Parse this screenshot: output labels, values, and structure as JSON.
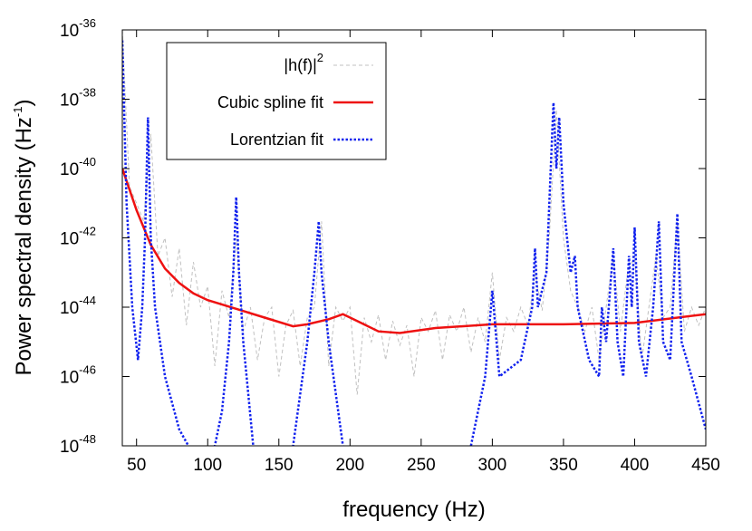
{
  "chart_data": {
    "type": "line",
    "log_y": true,
    "xlabel": "frequency (Hz)",
    "ylabel": {
      "text": "Power spectral density (Hz",
      "exponent": "-1",
      "suffix": ")"
    },
    "xlim": [
      40,
      450
    ],
    "xticks": [
      50,
      100,
      150,
      200,
      250,
      300,
      350,
      400,
      450
    ],
    "ylim": [
      1e-48,
      1e-36
    ],
    "yticks": [
      {
        "value": 1e-48,
        "base": "10",
        "exponent": "-48"
      },
      {
        "value": 1e-46,
        "base": "10",
        "exponent": "-46"
      },
      {
        "value": 1e-44,
        "base": "10",
        "exponent": "-44"
      },
      {
        "value": 1e-42,
        "base": "10",
        "exponent": "-42"
      },
      {
        "value": 1e-40,
        "base": "10",
        "exponent": "-40"
      },
      {
        "value": 1e-38,
        "base": "10",
        "exponent": "-38"
      },
      {
        "value": 1e-36,
        "base": "10",
        "exponent": "-36"
      }
    ],
    "legend": "top-left",
    "series": [
      {
        "name": "|h(f)|",
        "name_exponent": "2",
        "color": "#c0c0c0",
        "style": "dashed",
        "x": [
          40,
          45,
          50,
          55,
          60,
          65,
          70,
          75,
          80,
          85,
          90,
          95,
          100,
          105,
          110,
          115,
          120,
          125,
          130,
          135,
          140,
          145,
          150,
          155,
          160,
          165,
          170,
          175,
          180,
          185,
          190,
          195,
          200,
          205,
          210,
          215,
          220,
          225,
          230,
          235,
          240,
          245,
          250,
          255,
          260,
          265,
          270,
          275,
          280,
          285,
          290,
          295,
          300,
          305,
          310,
          315,
          320,
          325,
          330,
          335,
          340,
          345,
          350,
          355,
          360,
          365,
          370,
          375,
          380,
          385,
          390,
          395,
          400,
          405,
          410,
          415,
          420,
          425,
          430,
          435,
          440,
          445,
          450
        ],
        "values": [
          1e-36,
          3e-41,
          1e-41,
          3e-42,
          1e-39,
          3e-43,
          1e-42,
          2e-44,
          5e-43,
          3e-45,
          2e-43,
          1e-44,
          4e-44,
          2e-46,
          3e-44,
          5e-45,
          1e-42,
          2e-45,
          1e-44,
          3e-46,
          5e-45,
          1e-44,
          1e-46,
          3e-45,
          8e-45,
          2e-46,
          5e-45,
          1e-44,
          3e-42,
          2e-46,
          1e-44,
          4e-45,
          1e-44,
          3e-47,
          5e-45,
          1e-45,
          6e-45,
          3e-46,
          4e-45,
          8e-46,
          3e-45,
          1e-46,
          5e-45,
          2e-45,
          8e-45,
          3e-46,
          6e-45,
          2e-45,
          1e-44,
          5e-46,
          5e-45,
          1e-45,
          1e-43,
          3e-46,
          5e-45,
          2e-45,
          1e-44,
          3e-45,
          1e-43,
          8e-45,
          1e-42,
          5e-39,
          1e-42,
          3e-44,
          1e-44,
          2e-45,
          1e-44,
          3e-46,
          1e-44,
          3e-43,
          2e-45,
          1e-43,
          3e-43,
          3e-46,
          1e-44,
          3e-43,
          5e-45,
          1e-44,
          3e-42,
          2e-45,
          1e-44,
          3e-45,
          1e-44
        ]
      },
      {
        "name": "Cubic spline fit",
        "color": "#ee1111",
        "style": "solid",
        "x": [
          40,
          50,
          60,
          70,
          80,
          90,
          100,
          120,
          140,
          160,
          170,
          185,
          195,
          205,
          220,
          235,
          260,
          300,
          350,
          400,
          450
        ],
        "values": [
          1e-40,
          6.3e-42,
          6.3e-43,
          1.3e-43,
          5e-44,
          2.5e-44,
          1.6e-44,
          9e-45,
          5e-45,
          2.8e-45,
          3.2e-45,
          4.5e-45,
          6.3e-45,
          4e-45,
          2e-45,
          1.8e-45,
          2.5e-45,
          3.2e-45,
          3.2e-45,
          3.5e-45,
          6.3e-45
        ]
      },
      {
        "name": "Lorentzian fit",
        "color": "#1122ee",
        "style": "dotted",
        "x": [
          40,
          43,
          47,
          51,
          54,
          56,
          58,
          60,
          63,
          70,
          80,
          100,
          110,
          115,
          118,
          120,
          122,
          125,
          132,
          150,
          160,
          170,
          175,
          178,
          180,
          185,
          195,
          240,
          285,
          295,
          300,
          305,
          320,
          328,
          330,
          332,
          338,
          343,
          345,
          347,
          350,
          355,
          358,
          360,
          368,
          375,
          377,
          380,
          385,
          388,
          392,
          396,
          398,
          400,
          403,
          408,
          413,
          417,
          420,
          425,
          428,
          430,
          433,
          440,
          450
        ],
        "values": [
          5e-37,
          1e-41,
          1e-44,
          3e-46,
          1e-44,
          1e-42,
          3e-39,
          1e-42,
          1e-44,
          1e-46,
          3e-48,
          1e-49,
          1e-47,
          1e-45,
          1e-43,
          1.5e-41,
          1e-43,
          1e-45,
          1e-48,
          1e-50,
          1e-48,
          1e-45,
          1e-43,
          3e-42,
          1e-43,
          1e-45,
          1e-48,
          1e-51,
          1e-48,
          1e-46,
          3e-44,
          1e-46,
          3e-46,
          1e-44,
          5e-43,
          1e-44,
          1e-43,
          8e-39,
          1e-40,
          3e-39,
          1e-41,
          1e-43,
          3e-43,
          1e-44,
          3e-46,
          1e-46,
          1e-44,
          1e-45,
          5e-43,
          1e-45,
          1e-46,
          3e-43,
          1e-44,
          2e-42,
          1e-45,
          1e-46,
          1e-44,
          3e-42,
          1e-45,
          3e-46,
          1e-43,
          5e-42,
          1e-45,
          1e-46,
          3e-48
        ]
      }
    ]
  }
}
